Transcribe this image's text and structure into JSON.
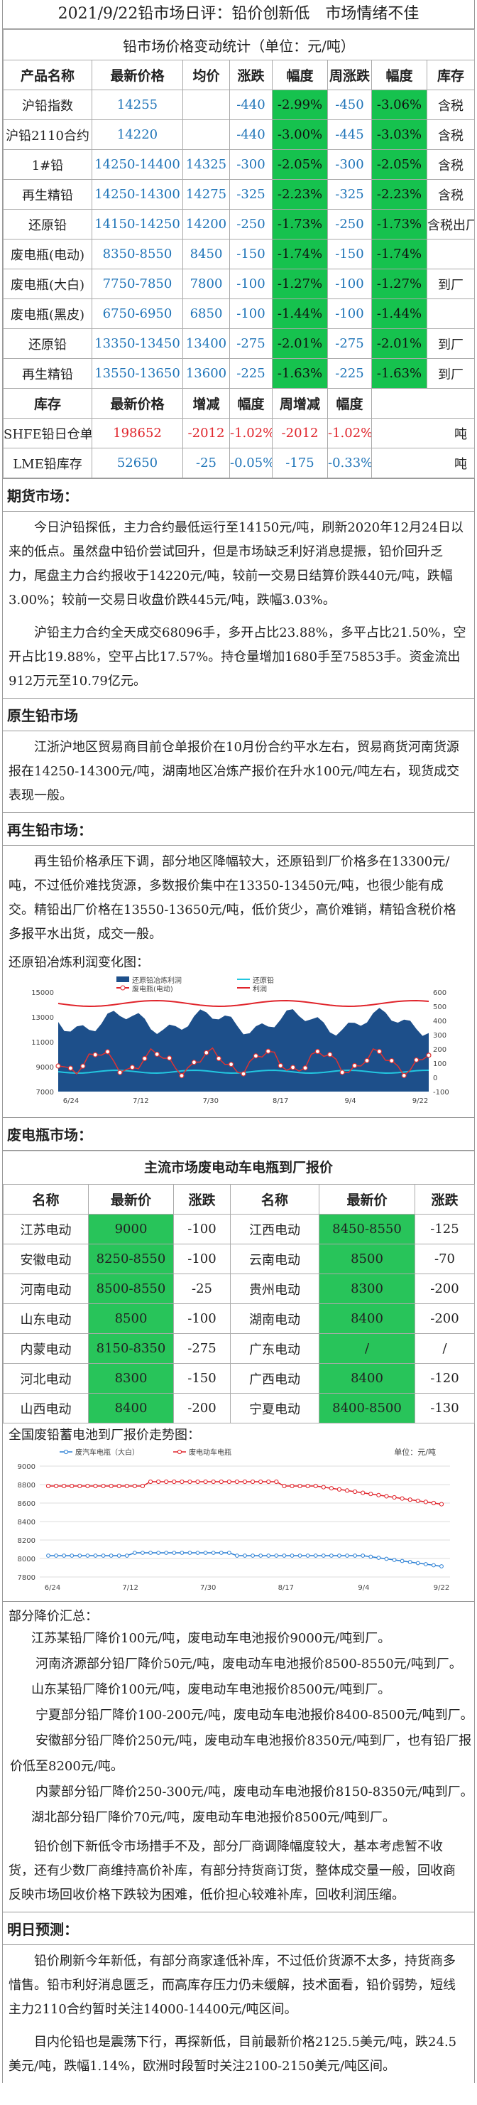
{
  "header": {
    "title": "2021/9/22铅市场日评：铅价创新低　市场情绪不佳"
  },
  "price_table": {
    "caption": "铅市场价格变动统计（单位：元/吨）",
    "headers": [
      "产品名称",
      "最新价格",
      "均价",
      "涨跌",
      "幅度",
      "周涨跌",
      "幅度",
      "库存"
    ],
    "rows": [
      {
        "name": "沪铅指数",
        "price": "14255",
        "avg": "",
        "chg": "-440",
        "pct": "-2.99%",
        "wchg": "-450",
        "wpct": "-3.06%",
        "note": "含税"
      },
      {
        "name": "沪铅2110合约",
        "price": "14220",
        "avg": "",
        "chg": "-440",
        "pct": "-3.00%",
        "wchg": "-445",
        "wpct": "-3.03%",
        "note": "含税"
      },
      {
        "name": "1#铅",
        "price": "14250-14400",
        "avg": "14325",
        "chg": "-300",
        "pct": "-2.05%",
        "wchg": "-300",
        "wpct": "-2.05%",
        "note": "含税"
      },
      {
        "name": "再生精铅",
        "price": "14250-14300",
        "avg": "14275",
        "chg": "-325",
        "pct": "-2.23%",
        "wchg": "-325",
        "wpct": "-2.23%",
        "note": "含税"
      },
      {
        "name": "还原铅",
        "price": "14150-14250",
        "avg": "14200",
        "chg": "-250",
        "pct": "-1.73%",
        "wchg": "-250",
        "wpct": "-1.73%",
        "note": "含税出厂"
      },
      {
        "name": "废电瓶(电动)",
        "price": "8350-8550",
        "avg": "8450",
        "chg": "-150",
        "pct": "-1.74%",
        "wchg": "-150",
        "wpct": "-1.74%",
        "note": ""
      },
      {
        "name": "废电瓶(大白)",
        "price": "7750-7850",
        "avg": "7800",
        "chg": "-100",
        "pct": "-1.27%",
        "wchg": "-100",
        "wpct": "-1.27%",
        "note": "到厂"
      },
      {
        "name": "废电瓶(黑皮)",
        "price": "6750-6950",
        "avg": "6850",
        "chg": "-100",
        "pct": "-1.44%",
        "wchg": "-100",
        "wpct": "-1.44%",
        "note": ""
      },
      {
        "name": "还原铅",
        "price": "13350-13450",
        "avg": "13400",
        "chg": "-275",
        "pct": "-2.01%",
        "wchg": "-275",
        "wpct": "-2.01%",
        "note": "到厂"
      },
      {
        "name": "再生精铅",
        "price": "13550-13650",
        "avg": "13600",
        "chg": "-225",
        "pct": "-1.63%",
        "wchg": "-225",
        "wpct": "-1.63%",
        "note": "到厂"
      }
    ],
    "inv_headers": [
      "库存",
      "最新价格",
      "增减",
      "幅度",
      "周增减",
      "幅度",
      ""
    ],
    "inv_rows": [
      {
        "name": "SHFE铅日仓单",
        "price": "198652",
        "chg": "-2012",
        "pct": "-1.02%",
        "wchg": "-2012",
        "wpct": "-1.02%",
        "unit": "吨"
      },
      {
        "name": "LME铅库存",
        "price": "52650",
        "chg": "-25",
        "pct": "-0.05%",
        "wchg": "-175",
        "wpct": "-0.33%",
        "unit": "吨"
      }
    ]
  },
  "futures": {
    "title": "期货市场：",
    "p1": "今日沪铅探低，主力合约最低运行至14150元/吨，刷新2020年12月24日以来的低点。虽然盘中铅价尝试回升，但是市场缺乏利好消息提振，铅价回升乏力，尾盘主力合约报收于14220元/吨，较前一交易日结算价跌440元/吨，跌幅3.00%；较前一交易日收盘价跌445元/吨，跌幅3.03%。",
    "p2": "沪铅主力合约全天成交68096手，多开占比23.88%，多平占比21.50%，空开占比19.88%，空平占比17.57%。持仓量增加1680手至75853手。资金流出912万元至10.79亿元。"
  },
  "primary": {
    "title": "原生铅市场",
    "p1": "江浙沪地区贸易商目前仓单报价在10月份合约平水左右，贸易商货河南货源报在14250-14300元/吨，湖南地区冶炼产报价在升水100元/吨左右，现货成交表现一般。"
  },
  "recycled": {
    "title": "再生铅市场：",
    "p1": "再生铅价格承压下调，部分地区降幅较大，还原铅到厂价格多在13300元/吨，不过低价难找货源，多数报价集中在13350-13450元/吨，也很少能有成交。精铅出厂价格在13550-13650元/吨，低价货少，高价难销，精铅含税价格多报平水出货，成交一般。",
    "chart_title": "还原铅冶炼利润变化图："
  },
  "profit_chart": {
    "type": "area",
    "legend": [
      "还原铅冶炼利润",
      "还原铅",
      "废电瓶(电动)",
      "利润"
    ],
    "x_ticks": [
      "6/24",
      "7/12",
      "7/30",
      "8/17",
      "9/4",
      "9/22"
    ],
    "y_left": [
      "7000",
      "9000",
      "11000",
      "13000",
      "15000"
    ],
    "y_right": [
      "-100",
      "0",
      "100",
      "200",
      "300",
      "400",
      "500",
      "600"
    ],
    "ylim_left": [
      7000,
      15000
    ],
    "ylim_right": [
      -100,
      600
    ]
  },
  "scrap": {
    "title": "废电瓶市场：",
    "table_title": "主流市场废电动车电瓶到厂报价",
    "headers": [
      "名称",
      "最新价",
      "涨跌",
      "名称",
      "最新价",
      "涨跌"
    ],
    "rows": [
      {
        "n1": "江苏电动",
        "p1": "9000",
        "c1": "-100",
        "n2": "江西电动",
        "p2": "8450-8550",
        "c2": "-125"
      },
      {
        "n1": "安徽电动",
        "p1": "8250-8550",
        "c1": "-100",
        "n2": "云南电动",
        "p2": "8500",
        "c2": "-70"
      },
      {
        "n1": "河南电动",
        "p1": "8500-8550",
        "c1": "-25",
        "n2": "贵州电动",
        "p2": "8300",
        "c2": "-200"
      },
      {
        "n1": "山东电动",
        "p1": "8500",
        "c1": "-100",
        "n2": "湖南电动",
        "p2": "8400",
        "c2": "-200"
      },
      {
        "n1": "内蒙电动",
        "p1": "8150-8350",
        "c1": "-275",
        "n2": "广东电动",
        "p2": "/",
        "c2": "/"
      },
      {
        "n1": "河北电动",
        "p1": "8300",
        "c1": "-150",
        "n2": "广西电动",
        "p2": "8400",
        "c2": "-120"
      },
      {
        "n1": "山西电动",
        "p1": "8400",
        "c1": "-200",
        "n2": "宁夏电动",
        "p2": "8400-8500",
        "c2": "-130"
      }
    ],
    "chart_title": "全国废铅蓄电池到厂报价走势图："
  },
  "scrap_chart": {
    "type": "line",
    "legend": [
      "废汽车电瓶（大白）",
      "废电动车电瓶"
    ],
    "unit": "单位：元/吨",
    "x_ticks": [
      "6/24",
      "7/12",
      "7/30",
      "8/17",
      "9/4",
      "9/22"
    ],
    "y_ticks": [
      "7800",
      "8000",
      "8200",
      "8400",
      "8600",
      "8800",
      "9000"
    ],
    "ylim": [
      7800,
      9000
    ]
  },
  "cuts": {
    "title": "部分降价汇总：",
    "items": [
      "江苏某铅厂降价100元/吨，废电动车电池报价9000元/吨到厂。",
      "河南济源部分铅厂降价50元/吨，废电动车电池报价8500-8550元/吨到厂。",
      "山东某铅厂降价100元/吨，废电动车电池报价8500元/吨到厂。",
      "宁夏部分铅厂降价100-200元/吨，废电动车电池报价8400-8500元/吨到厂。",
      "安徽部分铅厂降价250元/吨，废电动车电池报价8350元/吨到厂，也有铅厂报价低至8200元/吨。",
      "内蒙部分铅厂降价250-300元/吨，废电动车电池报价8150-8350元/吨到厂。",
      "湖北部分铅厂降价70元/吨，废电动车电池报价8500元/吨到厂。"
    ],
    "summary": "铅价创下新低令市场措手不及，部分厂商调降幅度较大，基本考虑暂不收货，还有少数厂商维持高价补库，有部分持货商订货，整体成交量一般，回收商反映市场回收价格下跌较为困难，低价担心较难补库，回收利润压缩。"
  },
  "forecast": {
    "title": "明日预测：",
    "p1": "铅价刷新今年新低，有部分商家逢低补库，不过低价货源不太多，持货商多惜售。铅市利好消息匮乏，而高库存压力仍未缓解，技术面看，铅价弱势，短线主力2110合约暂时关注14000-14400元/吨区间。",
    "p2": "目内伦铅也是震荡下行，再探新低，目前最新价格2125.5美元/吨，跌24.5美元/吨，跌幅1.14%，欧洲时段暂时关注2100-2150美元/吨区间。"
  }
}
